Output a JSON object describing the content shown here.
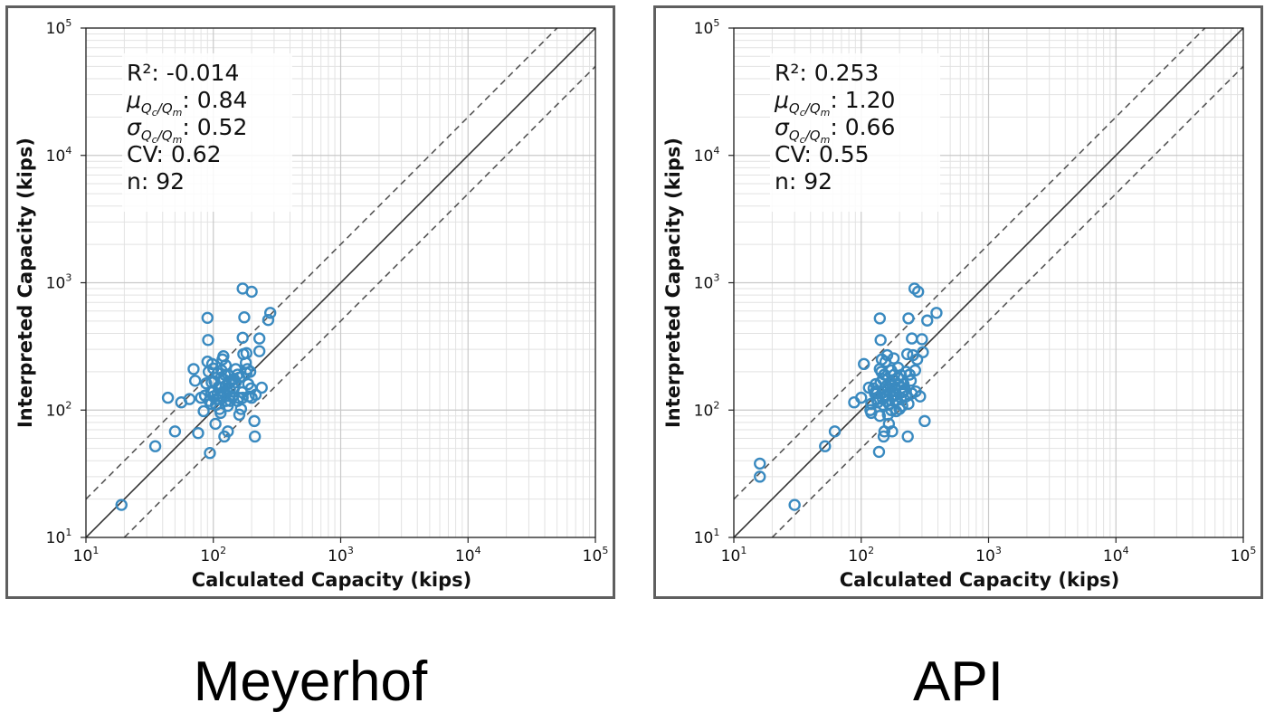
{
  "captions": [
    "Meyerhof",
    "API"
  ],
  "chart_data": [
    {
      "type": "scatter",
      "title": "Meyerhof",
      "xlabel": "Calculated Capacity (kips)",
      "ylabel": "Interpreted Capacity (kips)",
      "xscale": "log",
      "yscale": "log",
      "xlim": [
        10,
        100000
      ],
      "ylim": [
        10,
        100000
      ],
      "x_ticks": [
        "10^1",
        "10^2",
        "10^3",
        "10^4",
        "10^5"
      ],
      "y_ticks": [
        "10^1",
        "10^2",
        "10^3",
        "10^4",
        "10^5"
      ],
      "grid": true,
      "reference_lines": [
        "1:1 line (solid)",
        "2:1 and 1:2 lines (dashed)"
      ],
      "stats": {
        "r2": "R²: -0.014",
        "mu": ": 0.84",
        "sigma": ": 0.52",
        "cv": "CV: 0.62",
        "n": "n: 92"
      },
      "marker_color": "#3a8ac0",
      "points": [
        [
          19,
          18
        ],
        [
          35,
          52
        ],
        [
          50,
          68
        ],
        [
          44,
          125
        ],
        [
          56,
          115
        ],
        [
          65,
          122
        ],
        [
          70,
          210
        ],
        [
          72,
          170
        ],
        [
          76,
          66
        ],
        [
          80,
          125
        ],
        [
          84,
          98
        ],
        [
          88,
          162
        ],
        [
          90,
          240
        ],
        [
          90,
          530
        ],
        [
          91,
          355
        ],
        [
          92,
          200
        ],
        [
          93,
          118
        ],
        [
          94,
          46
        ],
        [
          96,
          138
        ],
        [
          98,
          230
        ],
        [
          100,
          140
        ],
        [
          100,
          212
        ],
        [
          102,
          168
        ],
        [
          104,
          78
        ],
        [
          106,
          122
        ],
        [
          108,
          195
        ],
        [
          110,
          152
        ],
        [
          112,
          102
        ],
        [
          114,
          95
        ],
        [
          116,
          205
        ],
        [
          118,
          250
        ],
        [
          120,
          265
        ],
        [
          120,
          175
        ],
        [
          122,
          62
        ],
        [
          125,
          225
        ],
        [
          126,
          118
        ],
        [
          128,
          145
        ],
        [
          130,
          190
        ],
        [
          130,
          68
        ],
        [
          133,
          165
        ],
        [
          136,
          118
        ],
        [
          140,
          172
        ],
        [
          145,
          148
        ],
        [
          150,
          210
        ],
        [
          155,
          190
        ],
        [
          158,
          125
        ],
        [
          160,
          92
        ],
        [
          165,
          102
        ],
        [
          168,
          138
        ],
        [
          170,
          370
        ],
        [
          170,
          900
        ],
        [
          172,
          275
        ],
        [
          175,
          535
        ],
        [
          180,
          235
        ],
        [
          182,
          280
        ],
        [
          185,
          210
        ],
        [
          188,
          160
        ],
        [
          190,
          128
        ],
        [
          195,
          200
        ],
        [
          198,
          148
        ],
        [
          200,
          850
        ],
        [
          210,
          82
        ],
        [
          212,
          62
        ],
        [
          215,
          132
        ],
        [
          230,
          365
        ],
        [
          230,
          290
        ],
        [
          240,
          150
        ],
        [
          270,
          510
        ],
        [
          280,
          580
        ],
        [
          86,
          130
        ],
        [
          97,
          165
        ],
        [
          115,
          180
        ],
        [
          120,
          140
        ],
        [
          135,
          145
        ],
        [
          118,
          128
        ],
        [
          125,
          155
        ],
        [
          145,
          175
        ],
        [
          200,
          125
        ],
        [
          105,
          110
        ],
        [
          112,
          128
        ],
        [
          160,
          180
        ],
        [
          108,
          135
        ],
        [
          130,
          108
        ],
        [
          170,
          125
        ],
        [
          150,
          165
        ],
        [
          96,
          112
        ],
        [
          124,
          188
        ],
        [
          142,
          128
        ],
        [
          100,
          128
        ],
        [
          116,
          150
        ],
        [
          182,
          195
        ],
        [
          155,
          118
        ]
      ]
    },
    {
      "type": "scatter",
      "title": "API",
      "xlabel": "Calculated Capacity (kips)",
      "ylabel": "Interpreted Capacity (kips)",
      "xscale": "log",
      "yscale": "log",
      "xlim": [
        10,
        100000
      ],
      "ylim": [
        10,
        100000
      ],
      "x_ticks": [
        "10^1",
        "10^2",
        "10^3",
        "10^4",
        "10^5"
      ],
      "y_ticks": [
        "10^1",
        "10^2",
        "10^3",
        "10^4",
        "10^5"
      ],
      "grid": true,
      "reference_lines": [
        "1:1 line (solid)",
        "2:1 and 1:2 lines (dashed)"
      ],
      "stats": {
        "r2": "R²: 0.253",
        "mu": ": 1.20",
        "sigma": ": 0.66",
        "cv": "CV: 0.55",
        "n": "n: 92"
      },
      "marker_color": "#3a8ac0",
      "points": [
        [
          16,
          38
        ],
        [
          16,
          30
        ],
        [
          30,
          18
        ],
        [
          52,
          52
        ],
        [
          62,
          68
        ],
        [
          88,
          115
        ],
        [
          100,
          125
        ],
        [
          105,
          230
        ],
        [
          115,
          150
        ],
        [
          118,
          100
        ],
        [
          120,
          95
        ],
        [
          125,
          148
        ],
        [
          128,
          135
        ],
        [
          130,
          160
        ],
        [
          135,
          115
        ],
        [
          138,
          47
        ],
        [
          140,
          210
        ],
        [
          140,
          525
        ],
        [
          142,
          355
        ],
        [
          144,
          200
        ],
        [
          145,
          250
        ],
        [
          148,
          175
        ],
        [
          150,
          138
        ],
        [
          150,
          62
        ],
        [
          152,
          68
        ],
        [
          153,
          128
        ],
        [
          155,
          240
        ],
        [
          158,
          118
        ],
        [
          160,
          270
        ],
        [
          162,
          92
        ],
        [
          165,
          78
        ],
        [
          168,
          138
        ],
        [
          170,
          165
        ],
        [
          172,
          205
        ],
        [
          175,
          68
        ],
        [
          180,
          255
        ],
        [
          182,
          190
        ],
        [
          185,
          150
        ],
        [
          188,
          132
        ],
        [
          190,
          120
        ],
        [
          195,
          178
        ],
        [
          200,
          102
        ],
        [
          205,
          188
        ],
        [
          210,
          108
        ],
        [
          215,
          140
        ],
        [
          220,
          145
        ],
        [
          225,
          200
        ],
        [
          230,
          275
        ],
        [
          232,
          62
        ],
        [
          235,
          525
        ],
        [
          240,
          190
        ],
        [
          250,
          365
        ],
        [
          255,
          270
        ],
        [
          262,
          900
        ],
        [
          268,
          140
        ],
        [
          275,
          250
        ],
        [
          280,
          850
        ],
        [
          290,
          128
        ],
        [
          300,
          360
        ],
        [
          305,
          285
        ],
        [
          315,
          82
        ],
        [
          330,
          505
        ],
        [
          390,
          580
        ],
        [
          148,
          110
        ],
        [
          162,
          145
        ],
        [
          178,
          128
        ],
        [
          198,
          158
        ],
        [
          132,
          122
        ],
        [
          210,
          138
        ],
        [
          142,
          165
        ],
        [
          185,
          118
        ],
        [
          172,
          100
        ],
        [
          225,
          128
        ],
        [
          158,
          155
        ],
        [
          195,
          215
        ],
        [
          140,
          90
        ],
        [
          245,
          170
        ],
        [
          265,
          205
        ],
        [
          120,
          112
        ],
        [
          175,
          155
        ],
        [
          152,
          190
        ],
        [
          215,
          160
        ],
        [
          188,
          98
        ],
        [
          235,
          112
        ],
        [
          205,
          125
        ],
        [
          165,
          112
        ],
        [
          130,
          140
        ],
        [
          250,
          135
        ],
        [
          148,
          122
        ],
        [
          183,
          170
        ],
        [
          160,
          130
        ],
        [
          208,
          150
        ]
      ]
    }
  ]
}
